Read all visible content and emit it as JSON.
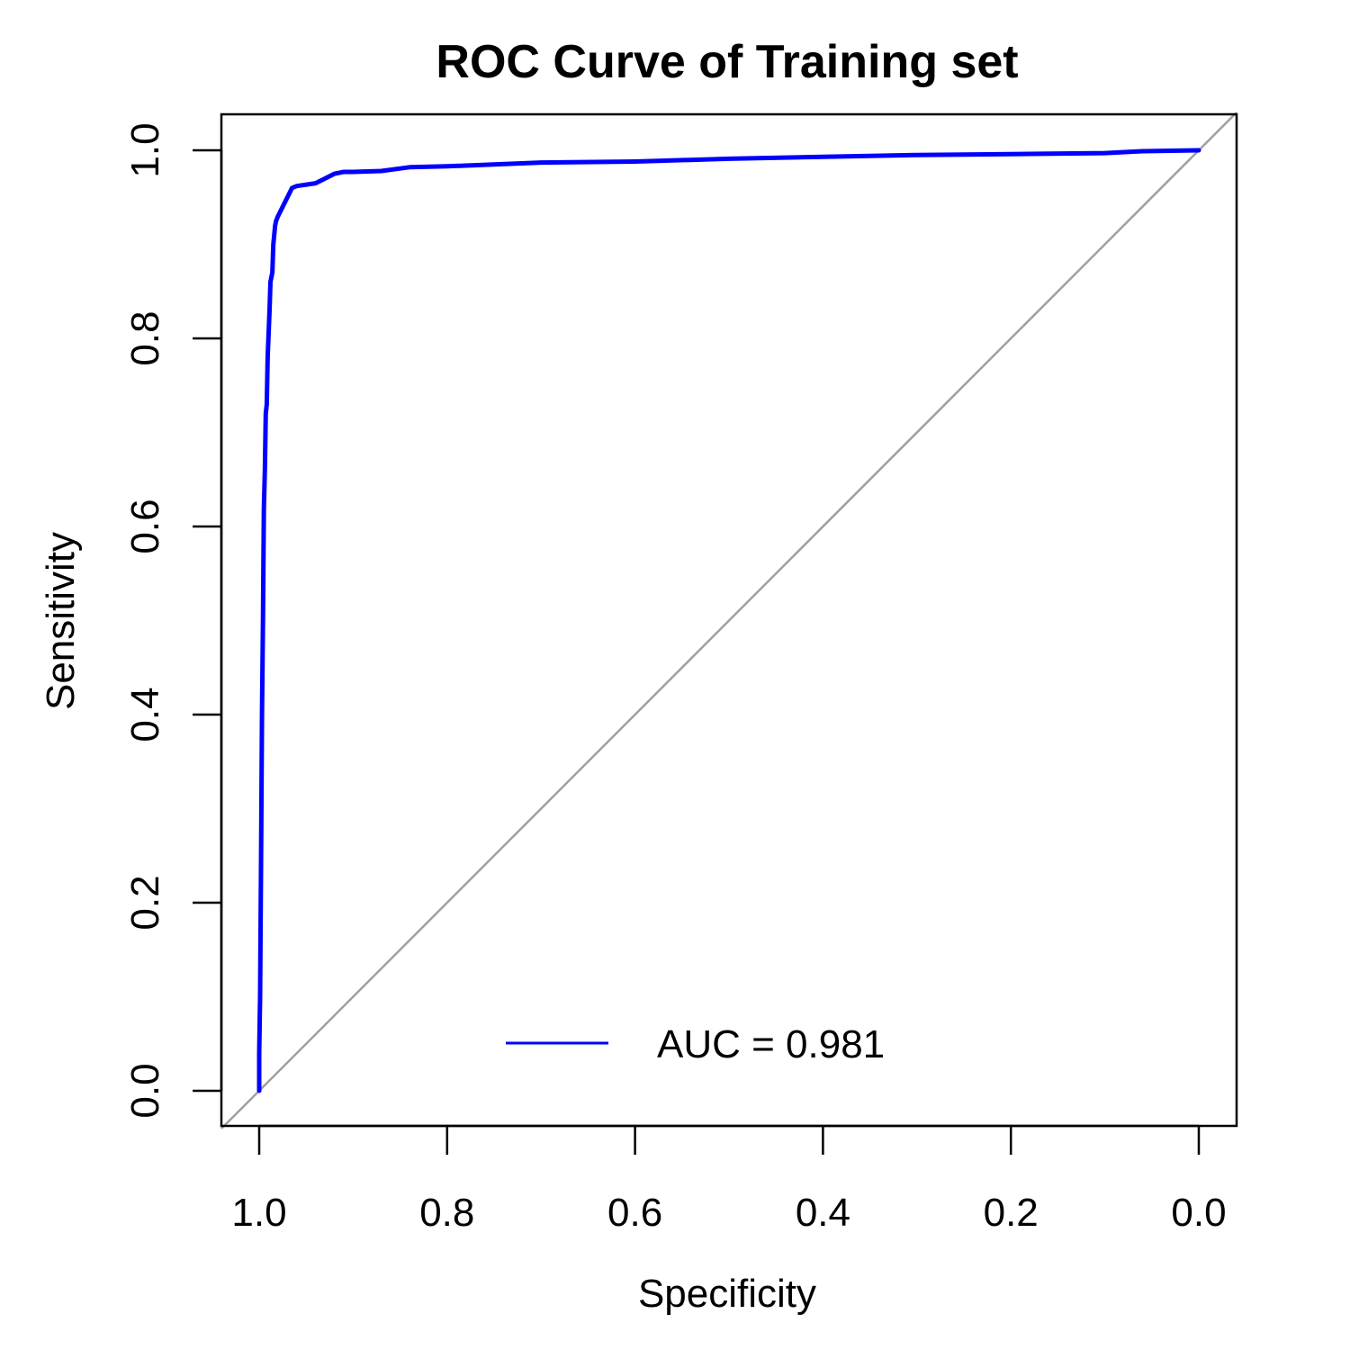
{
  "chart_data": {
    "type": "line",
    "title": "ROC Curve of Training set",
    "xlabel": "Specificity",
    "ylabel": "Sensitivity",
    "x_reversed": true,
    "xlim": [
      1.0,
      0.0
    ],
    "ylim": [
      0.0,
      1.0
    ],
    "x_ticks": [
      "1.0",
      "0.8",
      "0.6",
      "0.4",
      "0.2",
      "0.0"
    ],
    "y_ticks": [
      "0.0",
      "0.2",
      "0.4",
      "0.6",
      "0.8",
      "1.0"
    ],
    "grid": false,
    "legend_position": "bottom-center",
    "colors": {
      "roc": "#0000ff",
      "reference": "#a0a0a0",
      "axes": "#000000"
    },
    "series": [
      {
        "name": "AUC = 0.981",
        "x": [
          1.0,
          1.0,
          0.999,
          0.998,
          0.997,
          0.996,
          0.995,
          0.994,
          0.993,
          0.992,
          0.991,
          0.989,
          0.988,
          0.986,
          0.985,
          0.983,
          0.982,
          0.98,
          0.975,
          0.97,
          0.965,
          0.96,
          0.94,
          0.93,
          0.92,
          0.91,
          0.9,
          0.87,
          0.84,
          0.8,
          0.7,
          0.6,
          0.5,
          0.4,
          0.3,
          0.2,
          0.1,
          0.06,
          0.0
        ],
        "y": [
          0.0,
          0.04,
          0.1,
          0.25,
          0.4,
          0.5,
          0.62,
          0.66,
          0.72,
          0.73,
          0.78,
          0.83,
          0.86,
          0.87,
          0.9,
          0.92,
          0.925,
          0.93,
          0.94,
          0.95,
          0.96,
          0.962,
          0.965,
          0.97,
          0.975,
          0.977,
          0.977,
          0.978,
          0.982,
          0.983,
          0.987,
          0.988,
          0.991,
          0.993,
          0.995,
          0.996,
          0.997,
          0.999,
          1.0
        ]
      },
      {
        "x": [
          1.0,
          0.0
        ],
        "y": [
          0.0,
          1.0
        ]
      }
    ],
    "legend": {
      "label": "AUC = 0.981"
    }
  }
}
